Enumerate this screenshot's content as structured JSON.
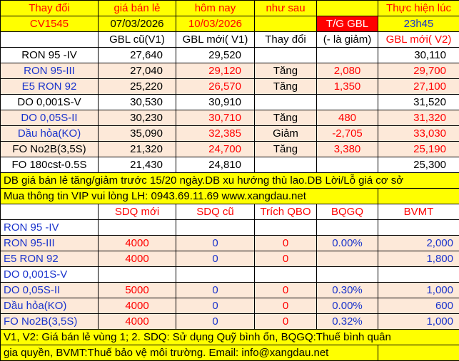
{
  "colors": {
    "yellow": "#ffff00",
    "pink": "#fde9d9",
    "red": "#ff0000",
    "blue": "#1a33cc"
  },
  "header": {
    "row1": [
      "Thay đổi",
      "giá bán lẻ",
      "hôm nay",
      "như sau",
      "",
      "Thực hiện lúc"
    ],
    "row2": [
      "CV1545",
      "07/03/2026",
      "10/03/2026",
      "",
      "T/G GBL",
      "23h45"
    ],
    "row3": [
      "",
      "GBL cũ(V1)",
      "GBL mới( V1)",
      "Thay đổi",
      "(- là giảm)",
      "GBL mới( V2)"
    ]
  },
  "prices": [
    {
      "name": "RON 95 -IV",
      "old_v1": "27,640",
      "new_v1": "29,520",
      "change": "",
      "delta": "",
      "new_v2": "30,110",
      "highlight": false
    },
    {
      "name": "RON 95-III",
      "old_v1": "27,040",
      "new_v1": "29,120",
      "change": "Tăng",
      "delta": "2,080",
      "new_v2": "29,700",
      "highlight": true
    },
    {
      "name": "E5 RON 92",
      "old_v1": "25,220",
      "new_v1": "26,570",
      "change": "Tăng",
      "delta": "1,350",
      "new_v2": "27,100",
      "highlight": true
    },
    {
      "name": "DO 0,001S-V",
      "old_v1": "30,530",
      "new_v1": "30,910",
      "change": "",
      "delta": "",
      "new_v2": "31,520",
      "highlight": false
    },
    {
      "name": "DO 0,05S-II",
      "old_v1": "30,230",
      "new_v1": "30,710",
      "change": "Tăng",
      "delta": "480",
      "new_v2": "31,320",
      "highlight": true
    },
    {
      "name": "Dầu hỏa(KO)",
      "old_v1": "35,090",
      "new_v1": "32,385",
      "change": "Giảm",
      "delta": "-2,705",
      "new_v2": "33,030",
      "highlight": true
    },
    {
      "name": "FO No2B(3,5S)",
      "old_v1": "21,320",
      "new_v1": "24,700",
      "change": "Tăng",
      "delta": "3,380",
      "new_v2": "25,190",
      "highlight": true
    },
    {
      "name": "FO 180cst-0.5S",
      "old_v1": "21,430",
      "new_v1": "24,810",
      "change": "",
      "delta": "",
      "new_v2": "25,300",
      "highlight": false
    }
  ],
  "notes1": {
    "line1": "DB giá bán lẻ tăng/giảm trước 15/20 ngày.DB xu hướng thù lao.DB Lời/Lỗ giá cơ sở",
    "line2": "Mua thông tin VIP vui lòng LH: 0943.69.11.69    www.xangdau.net"
  },
  "fund_header": [
    "",
    "SDQ mới",
    "SDQ cũ",
    "Trích QBO",
    "BQGQ",
    "BVMT"
  ],
  "funds": [
    {
      "name": "RON 95 -IV",
      "sdq_new": "",
      "sdq_old": "",
      "qbo": "",
      "bqgq": "",
      "bvmt": "",
      "highlight": false
    },
    {
      "name": "RON 95-III",
      "sdq_new": "4000",
      "sdq_old": "0",
      "qbo": "0",
      "bqgq": "0.00%",
      "bvmt": "2,000",
      "highlight": true
    },
    {
      "name": "E5 RON 92",
      "sdq_new": "4000",
      "sdq_old": "0",
      "qbo": "0",
      "bqgq": "",
      "bvmt": "1,800",
      "highlight": true
    },
    {
      "name": "DO 0,001S-V",
      "sdq_new": "",
      "sdq_old": "",
      "qbo": "",
      "bqgq": "",
      "bvmt": "",
      "highlight": false
    },
    {
      "name": "DO 0,05S-II",
      "sdq_new": "5000",
      "sdq_old": "0",
      "qbo": "0",
      "bqgq": "0.30%",
      "bvmt": "1,000",
      "highlight": true
    },
    {
      "name": "Dầu hỏa(KO)",
      "sdq_new": "4000",
      "sdq_old": "0",
      "qbo": "0",
      "bqgq": "0.00%",
      "bvmt": "600",
      "highlight": true
    },
    {
      "name": "FO No2B(3,5S)",
      "sdq_new": "4000",
      "sdq_old": "0",
      "qbo": "0",
      "bqgq": "0.32%",
      "bvmt": "1,000",
      "highlight": true
    }
  ],
  "notes2": {
    "line1": "V1, V2: Giá bán lẻ vùng 1; 2. SDQ: Sử dụng Quỹ bình ổn, BQGQ:Thuế bình quân",
    "line2": "gia quyền, BVMT:Thuế bảo vệ môi trường. Email: info@xangdau.net"
  }
}
